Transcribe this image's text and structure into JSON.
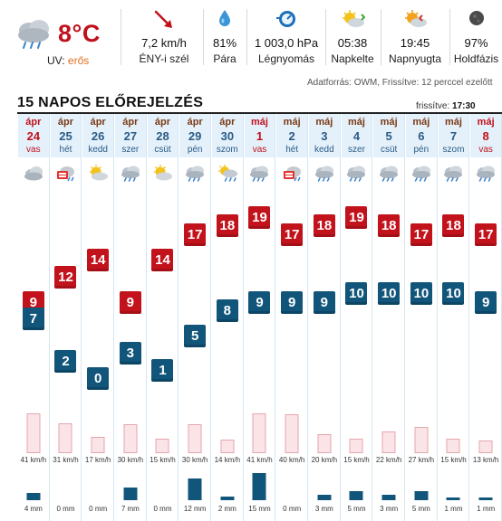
{
  "current": {
    "temperature": "8°C",
    "uv_label": "UV:",
    "uv_value": "erős",
    "wind": {
      "value": "7,2 km/h",
      "label": "ÉNY-i szél"
    },
    "humidity": {
      "value": "81%",
      "label": "Pára"
    },
    "pressure": {
      "value": "1 003,0 hPa",
      "label": "Légnyomás"
    },
    "sunrise": {
      "value": "05:38",
      "label": "Napkelte"
    },
    "sunset": {
      "value": "19:45",
      "label": "Napnyugta"
    },
    "moon": {
      "value": "97%",
      "label": "Holdfázis"
    },
    "source": "Adatforrás: OWM, Frissítve: 12 perccel ezelőtt"
  },
  "forecast": {
    "title": "15 NAPOS ELŐREJELZÉS",
    "updated_label": "frissítve:",
    "updated_time": "17:30",
    "temp_scale": [
      0,
      19
    ],
    "days": [
      {
        "month": "ápr",
        "day": "24",
        "weekday": "vas",
        "icon": "cloudy-icon",
        "hi": 9,
        "lo": 7,
        "wind": "41 km/h",
        "wind_kmh": 41,
        "rain": "4 mm",
        "rain_mm": 4,
        "red": true
      },
      {
        "month": "ápr",
        "day": "25",
        "weekday": "hét",
        "icon": "storm-icon",
        "hi": 12,
        "lo": 2,
        "wind": "31 km/h",
        "wind_kmh": 31,
        "rain": "0 mm",
        "rain_mm": 0,
        "red": false
      },
      {
        "month": "ápr",
        "day": "26",
        "weekday": "kedd",
        "icon": "partly-sunny-icon",
        "hi": 14,
        "lo": 0,
        "wind": "17 km/h",
        "wind_kmh": 17,
        "rain": "0 mm",
        "rain_mm": 0,
        "red": false
      },
      {
        "month": "ápr",
        "day": "27",
        "weekday": "szer",
        "icon": "rain-cloud-icon",
        "hi": 9,
        "lo": 3,
        "wind": "30 km/h",
        "wind_kmh": 30,
        "rain": "7 mm",
        "rain_mm": 7,
        "red": false
      },
      {
        "month": "ápr",
        "day": "28",
        "weekday": "csüt",
        "icon": "partly-sunny-icon",
        "hi": 14,
        "lo": 1,
        "wind": "15 km/h",
        "wind_kmh": 15,
        "rain": "0 mm",
        "rain_mm": 0,
        "red": false
      },
      {
        "month": "ápr",
        "day": "29",
        "weekday": "pén",
        "icon": "rain-cloud-icon",
        "hi": 17,
        "lo": 5,
        "wind": "30 km/h",
        "wind_kmh": 30,
        "rain": "12 mm",
        "rain_mm": 12,
        "red": false
      },
      {
        "month": "ápr",
        "day": "30",
        "weekday": "szom",
        "icon": "sun-rain-icon",
        "hi": 18,
        "lo": 8,
        "wind": "14 km/h",
        "wind_kmh": 14,
        "rain": "2 mm",
        "rain_mm": 2,
        "red": false
      },
      {
        "month": "máj",
        "day": "1",
        "weekday": "vas",
        "icon": "rain-cloud-icon",
        "hi": 19,
        "lo": 9,
        "wind": "41 km/h",
        "wind_kmh": 41,
        "rain": "15 mm",
        "rain_mm": 15,
        "red": true
      },
      {
        "month": "máj",
        "day": "2",
        "weekday": "hét",
        "icon": "storm-icon",
        "hi": 17,
        "lo": 9,
        "wind": "40 km/h",
        "wind_kmh": 40,
        "rain": "0 mm",
        "rain_mm": 0,
        "red": false
      },
      {
        "month": "máj",
        "day": "3",
        "weekday": "kedd",
        "icon": "rain-cloud-icon",
        "hi": 18,
        "lo": 9,
        "wind": "20 km/h",
        "wind_kmh": 20,
        "rain": "3 mm",
        "rain_mm": 3,
        "red": false
      },
      {
        "month": "máj",
        "day": "4",
        "weekday": "szer",
        "icon": "rain-cloud-icon",
        "hi": 19,
        "lo": 10,
        "wind": "15 km/h",
        "wind_kmh": 15,
        "rain": "5 mm",
        "rain_mm": 5,
        "red": false
      },
      {
        "month": "máj",
        "day": "5",
        "weekday": "csüt",
        "icon": "rain-cloud-icon",
        "hi": 18,
        "lo": 10,
        "wind": "22 km/h",
        "wind_kmh": 22,
        "rain": "3 mm",
        "rain_mm": 3,
        "red": false
      },
      {
        "month": "máj",
        "day": "6",
        "weekday": "pén",
        "icon": "rain-cloud-icon",
        "hi": 17,
        "lo": 10,
        "wind": "27 km/h",
        "wind_kmh": 27,
        "rain": "5 mm",
        "rain_mm": 5,
        "red": false
      },
      {
        "month": "máj",
        "day": "7",
        "weekday": "szom",
        "icon": "rain-cloud-icon",
        "hi": 18,
        "lo": 10,
        "wind": "15 km/h",
        "wind_kmh": 15,
        "rain": "1 mm",
        "rain_mm": 1,
        "red": false
      },
      {
        "month": "máj",
        "day": "8",
        "weekday": "vas",
        "icon": "rain-cloud-icon",
        "hi": 17,
        "lo": 9,
        "wind": "13 km/h",
        "wind_kmh": 13,
        "rain": "1 mm",
        "rain_mm": 1,
        "red": true
      }
    ]
  },
  "colors": {
    "high_temp": "#c2121c",
    "low_temp": "#11557a",
    "accent_red": "#c0111b",
    "uv_orange": "#e0701e",
    "date_blue": "#2a5b85"
  }
}
